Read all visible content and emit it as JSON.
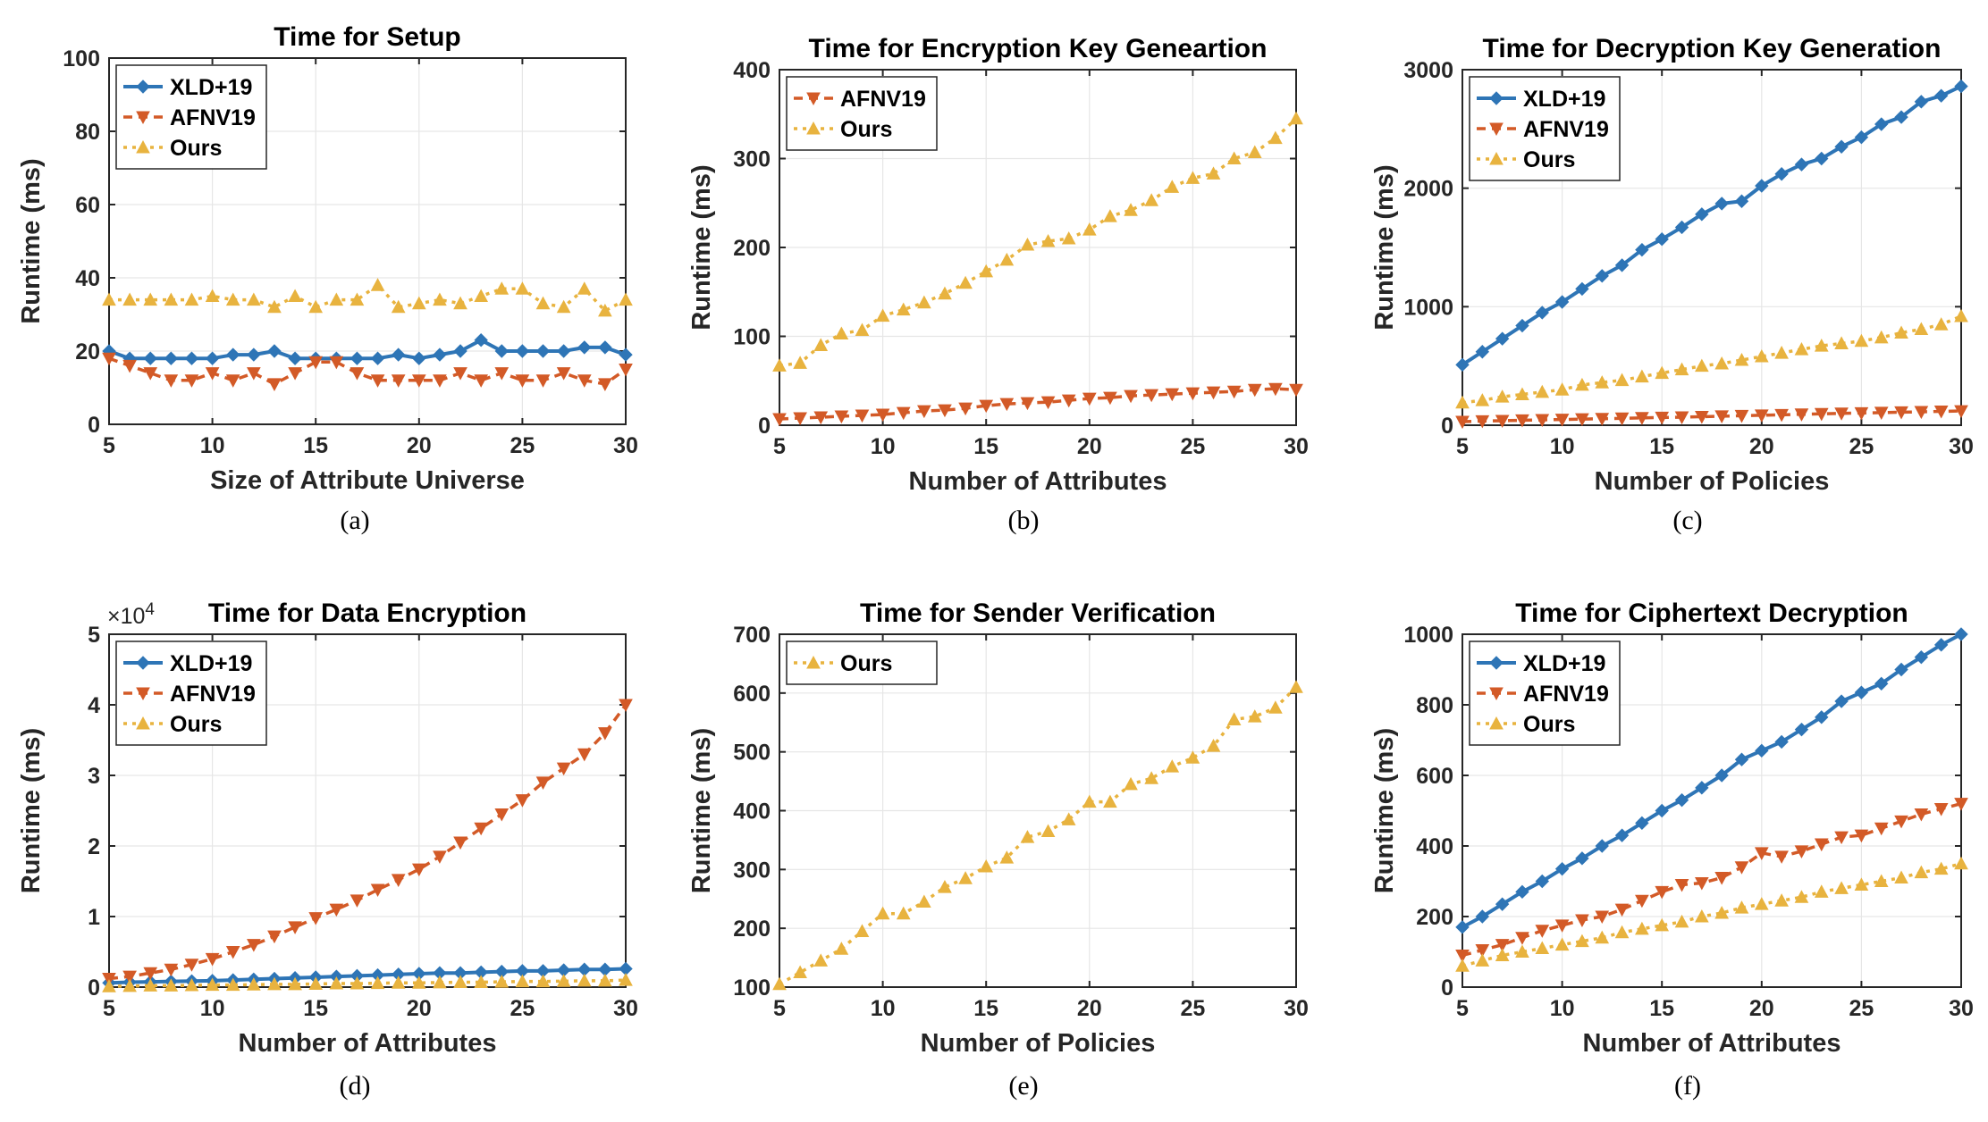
{
  "colors": {
    "XLD+19": "#2E75B6",
    "AFNV19": "#D35A27",
    "Ours": "#E8B33F"
  },
  "chart_data": [
    {
      "type": "line",
      "panel": "(a)",
      "title": "Time for Setup",
      "xlabel": "Size of Attribute Universe",
      "ylabel": "Runtime (ms)",
      "xlim": [
        5,
        30
      ],
      "ylim": [
        0,
        100
      ],
      "xticks": [
        5,
        10,
        15,
        20,
        25,
        30
      ],
      "yticks": [
        0,
        20,
        40,
        60,
        80,
        100
      ],
      "grid": true,
      "legend": "top-left",
      "x": [
        5,
        6,
        7,
        8,
        9,
        10,
        11,
        12,
        13,
        14,
        15,
        16,
        17,
        18,
        19,
        20,
        21,
        22,
        23,
        24,
        25,
        26,
        27,
        28,
        29,
        30
      ],
      "series": [
        {
          "name": "XLD+19",
          "values": [
            20,
            18,
            18,
            18,
            18,
            18,
            19,
            19,
            20,
            18,
            18,
            18,
            18,
            18,
            19,
            18,
            19,
            20,
            23,
            20,
            20,
            20,
            20,
            21,
            21,
            19
          ]
        },
        {
          "name": "AFNV19",
          "values": [
            18,
            16,
            14,
            12,
            12,
            14,
            12,
            14,
            11,
            14,
            17,
            17,
            14,
            12,
            12,
            12,
            12,
            14,
            12,
            14,
            12,
            12,
            14,
            12,
            11,
            15
          ]
        },
        {
          "name": "Ours",
          "values": [
            34,
            34,
            34,
            34,
            34,
            35,
            34,
            34,
            32,
            35,
            32,
            34,
            34,
            38,
            32,
            33,
            34,
            33,
            35,
            37,
            37,
            33,
            32,
            37,
            31,
            34
          ]
        }
      ]
    },
    {
      "type": "line",
      "panel": "(b)",
      "title": "Time for Encryption Key Geneartion",
      "xlabel": "Number of Attributes",
      "ylabel": "Runtime (ms)",
      "xlim": [
        5,
        30
      ],
      "ylim": [
        0,
        400
      ],
      "xticks": [
        5,
        10,
        15,
        20,
        25,
        30
      ],
      "yticks": [
        0,
        100,
        200,
        300,
        400
      ],
      "grid": true,
      "legend": "top-left",
      "x": [
        5,
        6,
        7,
        8,
        9,
        10,
        11,
        12,
        13,
        14,
        15,
        16,
        17,
        18,
        19,
        20,
        21,
        22,
        23,
        24,
        25,
        26,
        27,
        28,
        29,
        30
      ],
      "series": [
        {
          "name": "AFNV19",
          "values": [
            7,
            8,
            9,
            10,
            11,
            12,
            14,
            16,
            17,
            19,
            22,
            24,
            25,
            26,
            28,
            30,
            31,
            33,
            34,
            35,
            36,
            37,
            38,
            40,
            41,
            40
          ]
        },
        {
          "name": "Ours",
          "values": [
            67,
            70,
            90,
            103,
            107,
            123,
            130,
            138,
            148,
            160,
            173,
            186,
            203,
            207,
            210,
            220,
            235,
            242,
            253,
            268,
            278,
            283,
            300,
            307,
            323,
            345
          ]
        }
      ]
    },
    {
      "type": "line",
      "panel": "(c)",
      "title": "Time for Decryption Key Generation",
      "xlabel": "Number of Policies",
      "ylabel": "Runtime (ms)",
      "xlim": [
        5,
        30
      ],
      "ylim": [
        0,
        3000
      ],
      "xticks": [
        5,
        10,
        15,
        20,
        25,
        30
      ],
      "yticks": [
        0,
        1000,
        2000,
        3000
      ],
      "grid": true,
      "legend": "top-left",
      "x": [
        5,
        6,
        7,
        8,
        9,
        10,
        11,
        12,
        13,
        14,
        15,
        16,
        17,
        18,
        19,
        20,
        21,
        22,
        23,
        24,
        25,
        26,
        27,
        28,
        29,
        30
      ],
      "series": [
        {
          "name": "XLD+19",
          "values": [
            510,
            620,
            730,
            840,
            950,
            1040,
            1150,
            1260,
            1350,
            1480,
            1570,
            1670,
            1780,
            1870,
            1890,
            2020,
            2120,
            2200,
            2250,
            2350,
            2430,
            2540,
            2600,
            2730,
            2780,
            2860
          ]
        },
        {
          "name": "AFNV19",
          "values": [
            30,
            35,
            38,
            42,
            45,
            48,
            52,
            55,
            58,
            62,
            65,
            68,
            72,
            76,
            80,
            84,
            88,
            92,
            96,
            100,
            103,
            106,
            110,
            113,
            117,
            120
          ]
        },
        {
          "name": "Ours",
          "values": [
            190,
            210,
            240,
            260,
            280,
            300,
            340,
            360,
            380,
            410,
            440,
            470,
            500,
            520,
            550,
            580,
            610,
            640,
            670,
            690,
            710,
            740,
            780,
            810,
            850,
            920
          ]
        }
      ]
    },
    {
      "type": "line",
      "panel": "(d)",
      "title": "Time for Data Encryption",
      "xlabel": "Number of Attributes",
      "ylabel": "Runtime (ms)",
      "y_multiplier": "×10",
      "y_exponent": "4",
      "xlim": [
        5,
        30
      ],
      "ylim": [
        0,
        5
      ],
      "xticks": [
        5,
        10,
        15,
        20,
        25,
        30
      ],
      "yticks": [
        0,
        1,
        2,
        3,
        4,
        5
      ],
      "grid": true,
      "legend": "top-left",
      "x": [
        5,
        6,
        7,
        8,
        9,
        10,
        11,
        12,
        13,
        14,
        15,
        16,
        17,
        18,
        19,
        20,
        21,
        22,
        23,
        24,
        25,
        26,
        27,
        28,
        29,
        30
      ],
      "series": [
        {
          "name": "XLD+19",
          "values": [
            0.06,
            0.07,
            0.075,
            0.08,
            0.085,
            0.09,
            0.1,
            0.11,
            0.12,
            0.13,
            0.14,
            0.15,
            0.16,
            0.17,
            0.18,
            0.19,
            0.2,
            0.2,
            0.21,
            0.22,
            0.23,
            0.23,
            0.24,
            0.25,
            0.25,
            0.26
          ]
        },
        {
          "name": "AFNV19",
          "values": [
            0.12,
            0.15,
            0.2,
            0.25,
            0.32,
            0.4,
            0.5,
            0.6,
            0.72,
            0.85,
            0.98,
            1.1,
            1.23,
            1.38,
            1.52,
            1.67,
            1.85,
            2.05,
            2.25,
            2.45,
            2.65,
            2.9,
            3.1,
            3.3,
            3.6,
            4.0
          ]
        },
        {
          "name": "Ours",
          "values": [
            0.01,
            0.015,
            0.02,
            0.02,
            0.025,
            0.03,
            0.03,
            0.035,
            0.04,
            0.04,
            0.045,
            0.05,
            0.05,
            0.055,
            0.06,
            0.06,
            0.065,
            0.07,
            0.07,
            0.075,
            0.08,
            0.08,
            0.085,
            0.09,
            0.09,
            0.1
          ]
        }
      ]
    },
    {
      "type": "line",
      "panel": "(e)",
      "title": "Time for Sender Verification",
      "xlabel": "Number of Policies",
      "ylabel": "Runtime (ms)",
      "xlim": [
        5,
        30
      ],
      "ylim": [
        100,
        700
      ],
      "xticks": [
        5,
        10,
        15,
        20,
        25,
        30
      ],
      "yticks": [
        100,
        200,
        300,
        400,
        500,
        600,
        700
      ],
      "grid": true,
      "legend": "top-left",
      "x": [
        5,
        6,
        7,
        8,
        9,
        10,
        11,
        12,
        13,
        14,
        15,
        16,
        17,
        18,
        19,
        20,
        21,
        22,
        23,
        24,
        25,
        26,
        27,
        28,
        29,
        30
      ],
      "series": [
        {
          "name": "Ours",
          "values": [
            105,
            125,
            145,
            165,
            195,
            225,
            225,
            245,
            270,
            285,
            305,
            320,
            355,
            365,
            385,
            415,
            415,
            445,
            455,
            475,
            490,
            510,
            555,
            560,
            575,
            610
          ]
        }
      ]
    },
    {
      "type": "line",
      "panel": "(f)",
      "title": "Time for Ciphertext Decryption",
      "xlabel": "Number of Attributes",
      "ylabel": "Runtime (ms)",
      "xlim": [
        5,
        30
      ],
      "ylim": [
        0,
        1000
      ],
      "xticks": [
        5,
        10,
        15,
        20,
        25,
        30
      ],
      "yticks": [
        0,
        200,
        400,
        600,
        800,
        1000
      ],
      "grid": true,
      "legend": "top-left",
      "x": [
        5,
        6,
        7,
        8,
        9,
        10,
        11,
        12,
        13,
        14,
        15,
        16,
        17,
        18,
        19,
        20,
        21,
        22,
        23,
        24,
        25,
        26,
        27,
        28,
        29,
        30
      ],
      "series": [
        {
          "name": "XLD+19",
          "values": [
            170,
            200,
            235,
            270,
            300,
            335,
            365,
            400,
            430,
            465,
            500,
            530,
            565,
            600,
            645,
            670,
            695,
            730,
            765,
            810,
            835,
            860,
            900,
            935,
            970,
            1000
          ]
        },
        {
          "name": "AFNV19",
          "values": [
            90,
            105,
            120,
            140,
            160,
            175,
            190,
            200,
            220,
            245,
            270,
            290,
            295,
            310,
            340,
            380,
            370,
            385,
            405,
            425,
            430,
            450,
            470,
            490,
            505,
            520
          ]
        },
        {
          "name": "Ours",
          "values": [
            60,
            75,
            90,
            100,
            110,
            120,
            130,
            140,
            155,
            165,
            175,
            185,
            200,
            210,
            225,
            235,
            245,
            255,
            270,
            280,
            290,
            300,
            310,
            325,
            335,
            350
          ]
        }
      ]
    }
  ]
}
